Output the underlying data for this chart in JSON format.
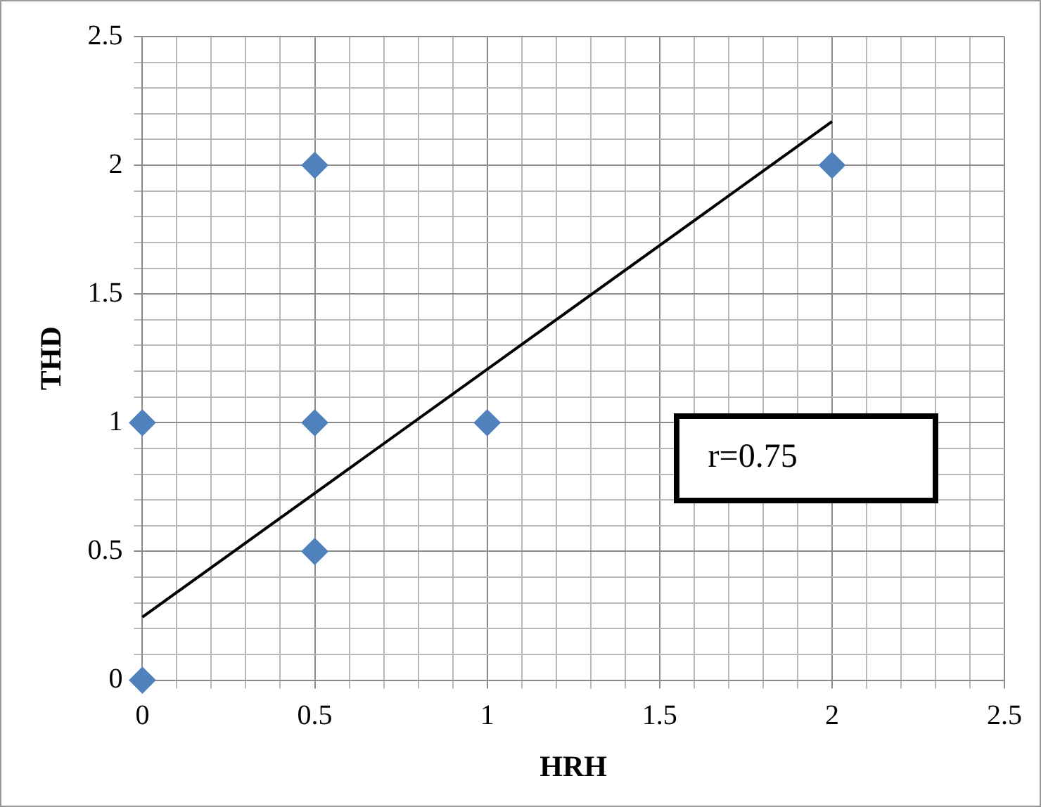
{
  "chart_data": {
    "type": "scatter",
    "xlabel": "HRH",
    "ylabel": "THD",
    "marker": "diamond",
    "grid": true,
    "legend": false,
    "xlim": [
      0,
      2.5
    ],
    "ylim": [
      0,
      2.5
    ],
    "xticks": [
      0,
      {
        "value": 0.1,
        "label": null
      },
      {
        "value": 0.2,
        "label": null
      },
      {
        "value": 0.3,
        "label": null
      },
      {
        "value": 0.4,
        "label": null
      },
      0.5,
      {
        "value": 0.6,
        "label": null
      },
      {
        "value": 0.7,
        "label": null
      },
      {
        "value": 0.8,
        "label": null
      },
      {
        "value": 0.9,
        "label": null
      },
      1,
      {
        "value": 1.1,
        "label": null
      },
      {
        "value": 1.2,
        "label": null
      },
      {
        "value": 1.3,
        "label": null
      },
      {
        "value": 1.4,
        "label": null
      },
      1.5,
      {
        "value": 1.6,
        "label": null
      },
      {
        "value": 1.7,
        "label": null
      },
      {
        "value": 1.8,
        "label": null
      },
      {
        "value": 1.9,
        "label": null
      },
      2,
      {
        "value": 2.1,
        "label": null
      },
      {
        "value": 2.2,
        "label": null
      },
      {
        "value": 2.3,
        "label": null
      },
      {
        "value": 2.4,
        "label": null
      },
      2.5
    ],
    "yticks": [
      0,
      {
        "value": 0.1,
        "label": null
      },
      {
        "value": 0.2,
        "label": null
      },
      {
        "value": 0.3,
        "label": null
      },
      {
        "value": 0.4,
        "label": null
      },
      0.5,
      {
        "value": 0.6,
        "label": null
      },
      {
        "value": 0.7,
        "label": null
      },
      {
        "value": 0.8,
        "label": null
      },
      {
        "value": 0.9,
        "label": null
      },
      1,
      {
        "value": 1.1,
        "label": null
      },
      {
        "value": 1.2,
        "label": null
      },
      {
        "value": 1.3,
        "label": null
      },
      {
        "value": 1.4,
        "label": null
      },
      1.5,
      {
        "value": 1.6,
        "label": null
      },
      {
        "value": 1.7,
        "label": null
      },
      {
        "value": 1.8,
        "label": null
      },
      {
        "value": 1.9,
        "label": null
      },
      2,
      {
        "value": 2.1,
        "label": null
      },
      {
        "value": 2.2,
        "label": null
      },
      {
        "value": 2.3,
        "label": null
      },
      {
        "value": 2.4,
        "label": null
      },
      2.5
    ],
    "series": [
      {
        "color": "#4f81bd",
        "x": [
          0,
          0,
          0.5,
          0.5,
          0.5,
          1,
          2
        ],
        "values": [
          0,
          1,
          2,
          1,
          0.5,
          1,
          2
        ]
      },
      {
        "type": "line",
        "color": "#000000",
        "marker": "none",
        "x": [
          0,
          2
        ],
        "values": [
          0.245,
          2.17
        ]
      }
    ],
    "annotations": [
      "r=0.75"
    ]
  }
}
